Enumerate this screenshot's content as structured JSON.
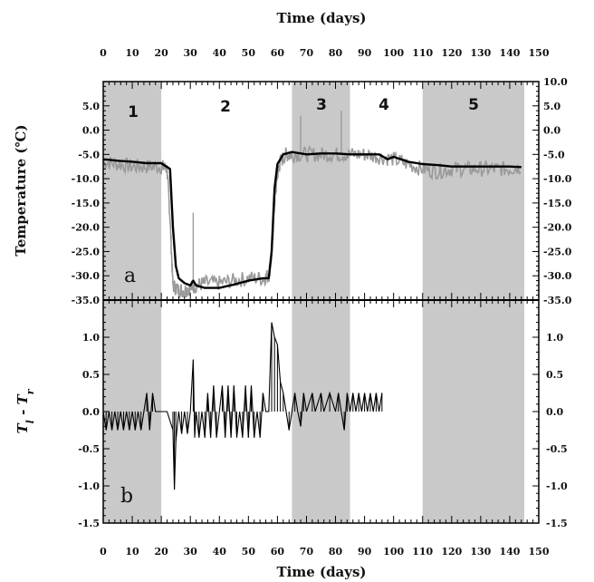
{
  "chart_data": [
    {
      "panel": "a",
      "type": "line",
      "xlabel": "Time (days)",
      "ylabel": "Temperature (℃)",
      "xlim": [
        0,
        150
      ],
      "ylim": [
        -35,
        10
      ],
      "x_ticks": [
        0,
        10,
        20,
        30,
        40,
        50,
        60,
        70,
        80,
        90,
        100,
        110,
        120,
        130,
        140,
        150
      ],
      "y_ticks_left": [
        "5.0",
        "0.0",
        "-5.0",
        "-10.0",
        "-15.0",
        "-20.0",
        "-25.0",
        "-30.0",
        "-35.0"
      ],
      "y_ticks_right": [
        "10.0",
        "5.0",
        "0.0",
        "-5.0",
        "-10.0",
        "-15.0",
        "-20.0",
        "-25.0",
        "-30.0",
        "-35.0"
      ],
      "regions": [
        {
          "label": "1",
          "x": [
            0,
            20
          ],
          "shaded": true
        },
        {
          "label": "2",
          "x": [
            20,
            65
          ],
          "shaded": false
        },
        {
          "label": "3",
          "x": [
            65,
            85
          ],
          "shaded": true
        },
        {
          "label": "4",
          "x": [
            85,
            110
          ],
          "shaded": false
        },
        {
          "label": "5",
          "x": [
            110,
            145
          ],
          "shaded": true
        }
      ],
      "series": [
        {
          "style": "gray-noisy",
          "color": "#9a9a9a",
          "points": [
            [
              0,
              -6.5
            ],
            [
              5,
              -7
            ],
            [
              10,
              -7.5
            ],
            [
              15,
              -7.5
            ],
            [
              20,
              -7.5
            ],
            [
              22,
              -8
            ],
            [
              23,
              -18
            ],
            [
              24,
              -32
            ],
            [
              26,
              -33
            ],
            [
              28,
              -33
            ],
            [
              30,
              -32.5
            ],
            [
              32,
              -32
            ],
            [
              35,
              -31.5
            ],
            [
              40,
              -31.5
            ],
            [
              45,
              -31
            ],
            [
              50,
              -30.5
            ],
            [
              55,
              -30.5
            ],
            [
              57,
              -30
            ],
            [
              58,
              -26
            ],
            [
              59,
              -15
            ],
            [
              60,
              -9
            ],
            [
              61,
              -6.5
            ],
            [
              63,
              -5
            ],
            [
              65,
              -5
            ],
            [
              70,
              -5
            ],
            [
              75,
              -5
            ],
            [
              80,
              -5
            ],
            [
              85,
              -5
            ],
            [
              90,
              -5
            ],
            [
              95,
              -5.5
            ],
            [
              100,
              -6
            ],
            [
              105,
              -7
            ],
            [
              110,
              -8
            ],
            [
              115,
              -8.5
            ],
            [
              120,
              -8
            ],
            [
              125,
              -8
            ],
            [
              130,
              -8
            ],
            [
              135,
              -8
            ],
            [
              140,
              -8
            ],
            [
              144,
              -7.5
            ]
          ],
          "spikes": [
            [
              31,
              -17
            ],
            [
              68,
              3
            ],
            [
              82,
              4
            ]
          ]
        },
        {
          "style": "black-smooth",
          "color": "#000000",
          "points": [
            [
              0,
              -6
            ],
            [
              5,
              -6.3
            ],
            [
              10,
              -6.5
            ],
            [
              15,
              -6.8
            ],
            [
              20,
              -6.8
            ],
            [
              23,
              -8
            ],
            [
              24,
              -20
            ],
            [
              25,
              -28
            ],
            [
              26,
              -30.5
            ],
            [
              28,
              -31.5
            ],
            [
              30,
              -32
            ],
            [
              31,
              -31
            ],
            [
              32,
              -32
            ],
            [
              35,
              -32.5
            ],
            [
              40,
              -32.5
            ],
            [
              45,
              -31.8
            ],
            [
              50,
              -31
            ],
            [
              55,
              -30.5
            ],
            [
              57,
              -30.5
            ],
            [
              58,
              -25
            ],
            [
              59,
              -12
            ],
            [
              60,
              -7
            ],
            [
              62,
              -5
            ],
            [
              65,
              -4.5
            ],
            [
              70,
              -5
            ],
            [
              75,
              -4.8
            ],
            [
              80,
              -4.8
            ],
            [
              85,
              -5
            ],
            [
              90,
              -5
            ],
            [
              95,
              -5
            ],
            [
              98,
              -6
            ],
            [
              100,
              -5.5
            ],
            [
              105,
              -6.5
            ],
            [
              110,
              -7
            ],
            [
              115,
              -7.2
            ],
            [
              120,
              -7.5
            ],
            [
              125,
              -7.5
            ],
            [
              130,
              -7.5
            ],
            [
              135,
              -7.5
            ],
            [
              140,
              -7.5
            ],
            [
              144,
              -7.6
            ]
          ]
        }
      ]
    },
    {
      "panel": "b",
      "type": "line",
      "xlabel": "Time (days)",
      "ylabel_main": "T",
      "ylabel_sub1": "l",
      "ylabel_mid": " - T",
      "ylabel_sub2": "r",
      "xlim": [
        0,
        150
      ],
      "ylim": [
        -1.5,
        1.5
      ],
      "x_ticks": [
        0,
        10,
        20,
        30,
        40,
        50,
        60,
        70,
        80,
        90,
        100,
        110,
        120,
        130,
        140,
        150
      ],
      "y_ticks": [
        "1.0",
        "0.5",
        "0.0",
        "-0.5",
        "-1.0",
        "-1.5"
      ],
      "regions": [
        {
          "x": [
            0,
            20
          ],
          "shaded": true
        },
        {
          "x": [
            65,
            85
          ],
          "shaded": true
        },
        {
          "x": [
            110,
            145
          ],
          "shaded": true
        }
      ],
      "segments": [
        [
          0,
          0
        ],
        [
          1,
          -0.25
        ],
        [
          2,
          0
        ],
        [
          3,
          -0.25
        ],
        [
          4,
          0
        ],
        [
          5,
          -0.25
        ],
        [
          6,
          0
        ],
        [
          7,
          -0.25
        ],
        [
          8,
          0
        ],
        [
          9,
          -0.25
        ],
        [
          10,
          0
        ],
        [
          11,
          -0.25
        ],
        [
          12,
          0
        ],
        [
          13,
          -0.25
        ],
        [
          14,
          0
        ],
        [
          15,
          0.25
        ],
        [
          16,
          -0.25
        ],
        [
          17,
          0.25
        ],
        [
          18,
          0
        ],
        [
          20,
          0
        ],
        [
          22,
          0
        ],
        [
          24,
          -0.25
        ],
        [
          24.5,
          -1.05
        ],
        [
          25,
          -0.4
        ],
        [
          26,
          0
        ],
        [
          27,
          -0.3
        ],
        [
          28,
          0
        ],
        [
          29,
          -0.3
        ],
        [
          30,
          0
        ],
        [
          31,
          0.7
        ],
        [
          31.5,
          -0.35
        ],
        [
          32,
          0
        ],
        [
          33,
          -0.35
        ],
        [
          34,
          0
        ],
        [
          35,
          -0.35
        ],
        [
          36,
          0.25
        ],
        [
          37,
          -0.35
        ],
        [
          38,
          0.35
        ],
        [
          39,
          -0.35
        ],
        [
          40,
          0
        ],
        [
          41,
          0.35
        ],
        [
          42,
          -0.35
        ],
        [
          43,
          0.35
        ],
        [
          44,
          -0.35
        ],
        [
          45,
          0.35
        ],
        [
          46,
          -0.35
        ],
        [
          47,
          0
        ],
        [
          48,
          -0.35
        ],
        [
          49,
          0.35
        ],
        [
          50,
          -0.35
        ],
        [
          51,
          0.35
        ],
        [
          52,
          -0.35
        ],
        [
          53,
          0
        ],
        [
          54,
          -0.35
        ],
        [
          55,
          0.25
        ],
        [
          56,
          0
        ],
        [
          57,
          0
        ],
        [
          58,
          1.2
        ],
        [
          59,
          1.0
        ],
        [
          60,
          0.9
        ],
        [
          61,
          0.4
        ],
        [
          62,
          0.25
        ],
        [
          63,
          0
        ],
        [
          64,
          -0.25
        ],
        [
          65,
          0
        ],
        [
          66,
          0.25
        ],
        [
          67,
          0
        ],
        [
          68,
          -0.2
        ],
        [
          69,
          0.25
        ],
        [
          70,
          0
        ],
        [
          72,
          0.25
        ],
        [
          73,
          0
        ],
        [
          75,
          0.25
        ],
        [
          76,
          0
        ],
        [
          78,
          0.25
        ],
        [
          80,
          0
        ],
        [
          81,
          0.25
        ],
        [
          82,
          0
        ],
        [
          83,
          -0.25
        ],
        [
          84,
          0.25
        ],
        [
          85,
          0
        ],
        [
          86,
          0.25
        ],
        [
          87,
          0
        ],
        [
          88,
          0.25
        ],
        [
          89,
          0
        ],
        [
          90,
          0.25
        ],
        [
          91,
          0
        ],
        [
          92,
          0.25
        ],
        [
          93,
          0
        ],
        [
          94,
          0.25
        ],
        [
          95,
          0
        ],
        [
          96,
          0.25
        ]
      ]
    }
  ],
  "region_labels": [
    "1",
    "2",
    "3",
    "4",
    "5"
  ],
  "panel_labels": [
    "a",
    "b"
  ],
  "axis_titles": {
    "top": "Time (days)",
    "bottom": "Time (days)",
    "panel_a_y": "Temperature (℃)"
  },
  "colors": {
    "shade": "#c9c9c9",
    "gray_series": "#9a9a9a",
    "black_series": "#000000"
  }
}
